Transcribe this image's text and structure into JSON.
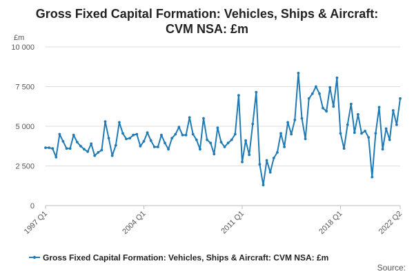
{
  "colors": {
    "series": "#1f7ab5",
    "grid": "#dddddd",
    "axis": "#bbbbbb"
  },
  "chart_data": {
    "type": "line",
    "title_lines": [
      "Gross Fixed Capital Formation: Vehicles, Ships & Aircraft:",
      "CVM NSA: £m"
    ],
    "unit": "£m",
    "ylim": [
      0,
      10000
    ],
    "yticks": [
      0,
      2500,
      5000,
      7500,
      10000
    ],
    "ytick_labels": [
      "0",
      "2 500",
      "5 000",
      "7 500",
      "10 000"
    ],
    "x_start": {
      "year": 1997,
      "quarter": 1
    },
    "xtick_labels": [
      "1997 Q1",
      "2004 Q1",
      "2011 Q1",
      "2018 Q1",
      "2022 Q2"
    ],
    "xtick_indices": [
      0,
      28,
      56,
      84,
      101
    ],
    "legend": "Gross Fixed Capital Formation: Vehicles, Ships & Aircraft: CVM NSA: £m",
    "source_label": "Source:",
    "series": [
      {
        "name": "Gross Fixed Capital Formation: Vehicles, Ships & Aircraft: CVM NSA: £m",
        "values": [
          3650,
          3650,
          3600,
          3050,
          4500,
          4050,
          3600,
          3600,
          4450,
          4000,
          3750,
          3550,
          3400,
          3900,
          3150,
          3350,
          3500,
          5300,
          4250,
          3150,
          3800,
          5250,
          4550,
          4200,
          4250,
          4450,
          4500,
          3750,
          4050,
          4600,
          4100,
          3700,
          3700,
          4450,
          3950,
          3550,
          4250,
          4500,
          4950,
          4450,
          4450,
          5550,
          4500,
          4150,
          3550,
          5500,
          4150,
          3950,
          3250,
          4900,
          4000,
          3700,
          3950,
          4150,
          4500,
          6950,
          2750,
          4100,
          3200,
          5150,
          7150,
          2600,
          1300,
          2850,
          2100,
          3000,
          3350,
          4550,
          3700,
          5250,
          4500,
          5400,
          8350,
          5500,
          4200,
          6750,
          7050,
          7500,
          7050,
          6150,
          5950,
          7450,
          6250,
          8050,
          4550,
          3600,
          5100,
          6400,
          4600,
          5750,
          4550,
          4700,
          4300,
          1800,
          4550,
          6200,
          3550,
          4850,
          4150,
          6000,
          5100,
          6750
        ]
      }
    ]
  }
}
